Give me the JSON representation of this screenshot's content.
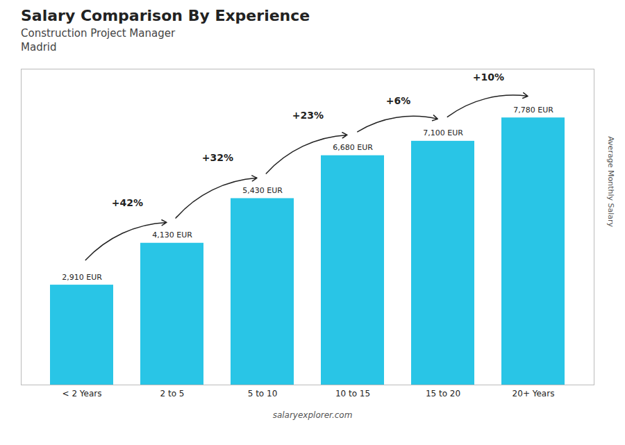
{
  "chart_data": {
    "type": "bar",
    "title": "Salary Comparison By Experience",
    "subtitle": [
      "Construction Project Manager",
      "Madrid"
    ],
    "categories": [
      "< 2 Years",
      "2 to 5",
      "5 to 10",
      "10 to 15",
      "15 to 20",
      "20+ Years"
    ],
    "values": [
      2910,
      4130,
      5430,
      6680,
      7100,
      7780
    ],
    "value_labels": [
      "2,910 EUR",
      "4,130 EUR",
      "5,430 EUR",
      "6,680 EUR",
      "7,100 EUR",
      "7,780 EUR"
    ],
    "data_labels": true,
    "color": "#29c5e6",
    "ylabel": "Average Monthly Salary",
    "ylim": [
      0,
      9200
    ],
    "yticks": [],
    "tick_labels": "x",
    "grid": false,
    "annotations": [
      {
        "text": "+42%",
        "from": "< 2 Years",
        "to": "2 to 5"
      },
      {
        "text": "+32%",
        "from": "2 to 5",
        "to": "5 to 10"
      },
      {
        "text": "+23%",
        "from": "5 to 10",
        "to": "10 to 15"
      },
      {
        "text": "+6%",
        "from": "10 to 15",
        "to": "15 to 20"
      },
      {
        "text": "+10%",
        "from": "15 to 20",
        "to": "20+ Years"
      }
    ],
    "caption": "salaryexplorer.com"
  }
}
